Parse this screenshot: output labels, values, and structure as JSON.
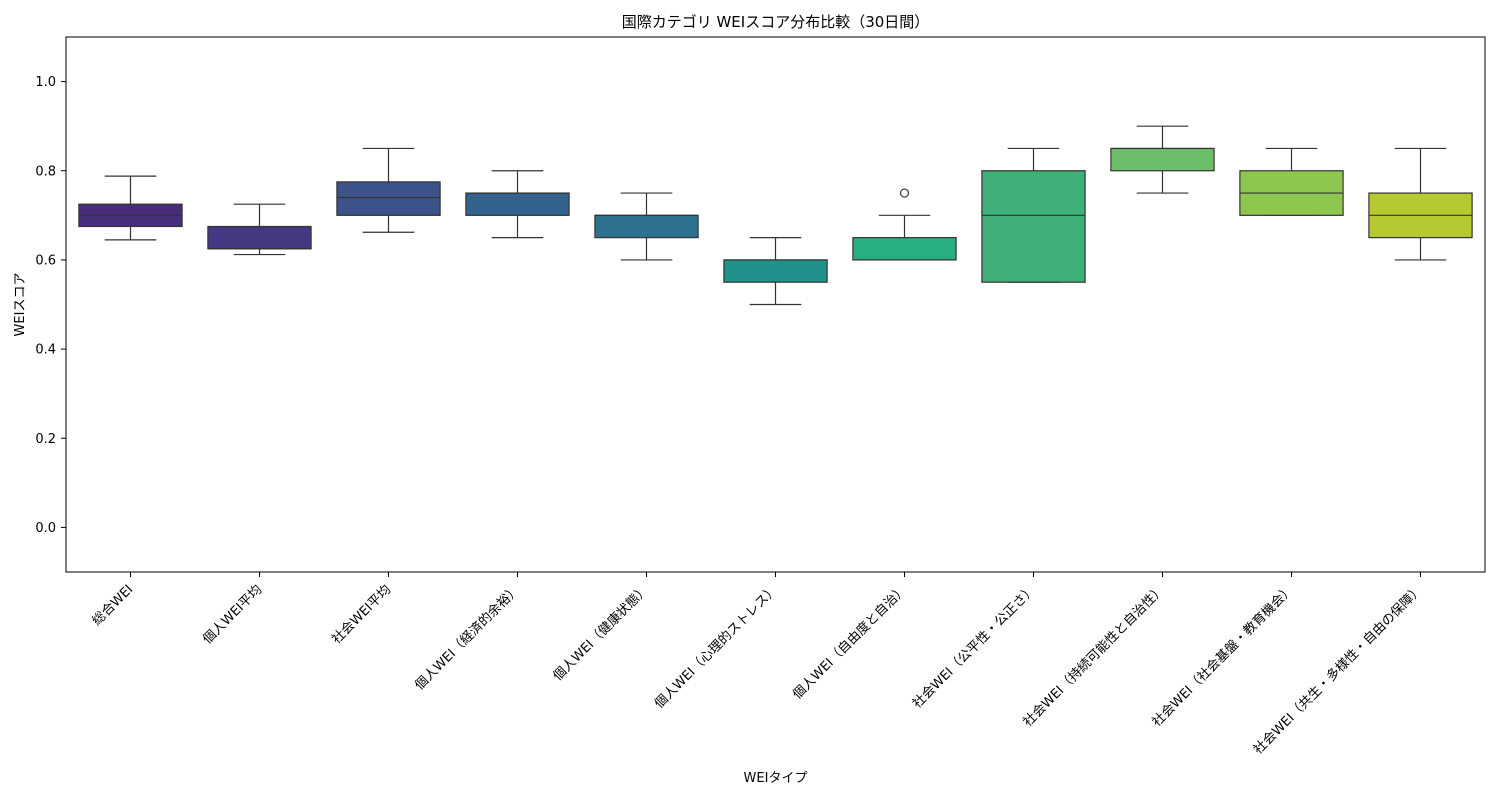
{
  "chart_data": {
    "type": "box",
    "title": "国際カテゴリ WEIスコア分布比較（30日間）",
    "xlabel": "WEIタイプ",
    "ylabel": "WEIスコア",
    "ylim": [
      -0.1,
      1.1
    ],
    "yticks": [
      0.0,
      0.2,
      0.4,
      0.6,
      0.8,
      1.0
    ],
    "ytick_labels": [
      "0.0",
      "0.2",
      "0.4",
      "0.6",
      "0.8",
      "1.0"
    ],
    "grid": false,
    "categories": [
      "総合WEI",
      "個人WEI平均",
      "社会WEI平均",
      "個人WEI（経済的余裕）",
      "個人WEI（健康状態）",
      "個人WEI（心理的ストレス）",
      "個人WEI（自由度と自治）",
      "社会WEI（公平性・公正さ）",
      "社会WEI（持続可能性と自治性）",
      "社会WEI（社会基盤・教育機会）",
      "社会WEI（共生・多様性・自由の保障）"
    ],
    "boxes": [
      {
        "whisker_low": 0.645,
        "q1": 0.675,
        "median": 0.7,
        "q3": 0.725,
        "whisker_high": 0.788,
        "outliers": [],
        "color": "#472d7b"
      },
      {
        "whisker_low": 0.612,
        "q1": 0.625,
        "median": 0.625,
        "q3": 0.675,
        "whisker_high": 0.725,
        "outliers": [],
        "color": "#443a83"
      },
      {
        "whisker_low": 0.662,
        "q1": 0.7,
        "median": 0.74,
        "q3": 0.775,
        "whisker_high": 0.85,
        "outliers": [],
        "color": "#3b528b"
      },
      {
        "whisker_low": 0.65,
        "q1": 0.7,
        "median": 0.75,
        "q3": 0.75,
        "whisker_high": 0.8,
        "outliers": [],
        "color": "#33638d"
      },
      {
        "whisker_low": 0.6,
        "q1": 0.65,
        "median": 0.7,
        "q3": 0.7,
        "whisker_high": 0.75,
        "outliers": [],
        "color": "#2c728e"
      },
      {
        "whisker_low": 0.5,
        "q1": 0.55,
        "median": 0.6,
        "q3": 0.6,
        "whisker_high": 0.65,
        "outliers": [],
        "color": "#21918c"
      },
      {
        "whisker_low": 0.6,
        "q1": 0.6,
        "median": 0.6,
        "q3": 0.65,
        "whisker_high": 0.7,
        "outliers": [
          0.75
        ],
        "color": "#28ae80"
      },
      {
        "whisker_low": 0.55,
        "q1": 0.55,
        "median": 0.7,
        "q3": 0.8,
        "whisker_high": 0.85,
        "outliers": [],
        "color": "#3fae77"
      },
      {
        "whisker_low": 0.75,
        "q1": 0.8,
        "median": 0.85,
        "q3": 0.85,
        "whisker_high": 0.9,
        "outliers": [],
        "color": "#6cbe6a"
      },
      {
        "whisker_low": 0.7,
        "q1": 0.7,
        "median": 0.75,
        "q3": 0.8,
        "whisker_high": 0.85,
        "outliers": [],
        "color": "#8dc750"
      },
      {
        "whisker_low": 0.6,
        "q1": 0.65,
        "median": 0.7,
        "q3": 0.75,
        "whisker_high": 0.85,
        "outliers": [],
        "color": "#b7c930"
      }
    ]
  }
}
